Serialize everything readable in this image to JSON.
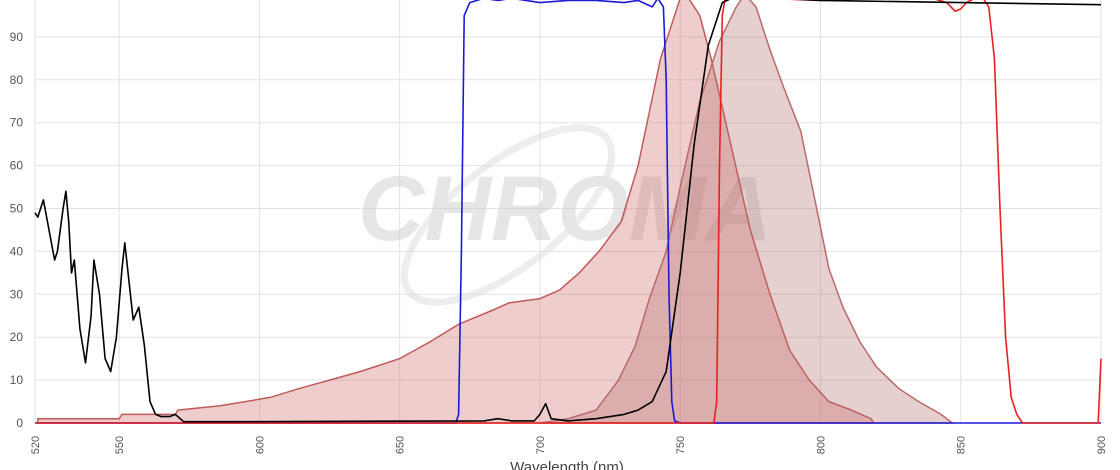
{
  "chart_data": {
    "type": "line",
    "x_label": "Wavelength (nm)",
    "watermark": "CHROMA",
    "watermark_mark": "®",
    "xlim": [
      520,
      900
    ],
    "ylim": [
      0,
      100
    ],
    "xticks": [
      520,
      550,
      600,
      650,
      700,
      750,
      800,
      850,
      900
    ],
    "yticks": [
      0,
      10,
      20,
      30,
      40,
      50,
      60,
      70,
      80,
      90
    ],
    "grid": true,
    "series": [
      {
        "color": "#c05a5a",
        "fill": "rgba(205,100,100,0.32)",
        "x": [
          521,
          550,
          551,
          570,
          571,
          586,
          595,
          604,
          614,
          625,
          636,
          650,
          661,
          671,
          682,
          689,
          700,
          707,
          714,
          721,
          729,
          735,
          743,
          750,
          752,
          757,
          761,
          768,
          775,
          782,
          789,
          796,
          803,
          811,
          818,
          819
        ],
        "values": [
          1,
          1,
          2,
          2,
          3,
          4,
          5,
          6,
          8,
          10,
          12,
          15,
          19,
          23,
          26,
          28,
          29,
          31,
          35,
          40,
          47,
          60,
          85,
          99,
          100,
          95,
          85,
          65,
          45,
          30,
          17,
          10,
          5,
          3,
          1,
          0
        ]
      },
      {
        "color": "#b86a6a",
        "fill": "rgba(180,110,110,0.33)",
        "x": [
          700,
          710,
          720,
          728,
          734,
          739,
          745,
          750,
          757,
          764,
          770,
          773,
          777,
          782,
          787,
          793,
          798,
          803,
          808,
          814,
          820,
          828,
          835,
          843,
          847
        ],
        "values": [
          0,
          1,
          3,
          10,
          18,
          29,
          40,
          55,
          75,
          89,
          97,
          100,
          97,
          87,
          78,
          68,
          52,
          36,
          27,
          19,
          13,
          8,
          5,
          2,
          0
        ]
      },
      {
        "color": "#1a1ad6",
        "x": [
          520,
          670,
          671,
          672,
          673,
          675,
          680,
          685,
          690,
          700,
          710,
          720,
          730,
          735,
          740,
          742,
          744,
          745,
          746,
          747,
          748,
          750,
          900
        ],
        "values": [
          0,
          0,
          2,
          40,
          95,
          98,
          99,
          98.5,
          99,
          98,
          98.5,
          98.5,
          98,
          98.5,
          97,
          99,
          97,
          80,
          30,
          5,
          0.5,
          0,
          0
        ]
      },
      {
        "color": "#e82020",
        "x": [
          520,
          762,
          763,
          764,
          765,
          766,
          768,
          770,
          780,
          800,
          820,
          840,
          845,
          848,
          850,
          852,
          855,
          858,
          860,
          862,
          864,
          866,
          868,
          870,
          872,
          899,
          900
        ],
        "values": [
          0,
          0,
          5,
          60,
          95,
          99,
          99.5,
          99,
          99,
          98.5,
          99,
          99,
          98,
          96,
          96.5,
          98,
          99,
          99,
          97,
          85,
          50,
          20,
          6,
          2,
          0,
          0,
          15
        ]
      },
      {
        "color": "#000000",
        "x": [
          520,
          521,
          522,
          523,
          525,
          527,
          528,
          530,
          531,
          532,
          533,
          534,
          536,
          538,
          540,
          541,
          543,
          545,
          547,
          549,
          551,
          552,
          553,
          555,
          557,
          559,
          561,
          563,
          565,
          568,
          570,
          573,
          590,
          680,
          685,
          690,
          698,
          700,
          702,
          704,
          710,
          720,
          730,
          735,
          740,
          745,
          750,
          755,
          760,
          765,
          770,
          800,
          850,
          900
        ],
        "values": [
          49,
          48,
          50,
          52,
          45,
          38,
          40,
          50,
          54,
          47,
          35,
          38,
          22,
          14,
          25,
          38,
          30,
          15,
          12,
          20,
          36,
          42,
          36,
          24,
          27,
          18,
          5,
          2,
          1.5,
          1.5,
          2,
          0.3,
          0.3,
          0.5,
          1,
          0.5,
          0.5,
          2,
          4.5,
          1,
          0.5,
          1,
          2,
          3,
          5,
          12,
          35,
          65,
          88,
          98,
          99.5,
          98.5,
          98,
          97.5
        ]
      }
    ]
  }
}
